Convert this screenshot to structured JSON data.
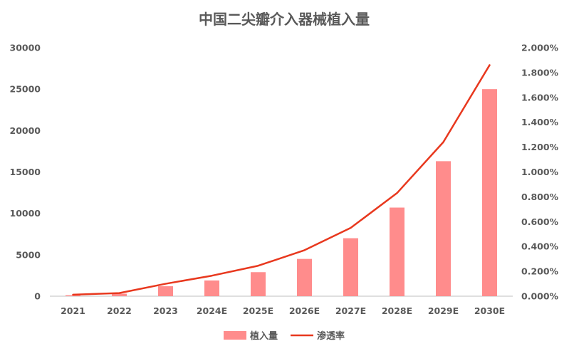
{
  "chart_data": {
    "type": "bar+line",
    "title": "中国二尖瓣介入器械植入量",
    "categories": [
      "2021",
      "2022",
      "2023",
      "2024E",
      "2025E",
      "2026E",
      "2027E",
      "2028E",
      "2029E",
      "2030E"
    ],
    "series": [
      {
        "name": "植入量",
        "type": "bar",
        "axis": "left",
        "color": "#FF8C8C",
        "values": [
          120,
          300,
          1200,
          1900,
          2900,
          4500,
          7000,
          10700,
          16300,
          25000
        ]
      },
      {
        "name": "渗透率",
        "type": "line",
        "axis": "right",
        "color": "#E8381E",
        "values": [
          0.012,
          0.025,
          0.1,
          0.165,
          0.245,
          0.37,
          0.55,
          0.83,
          1.24,
          1.86
        ]
      }
    ],
    "y_left": {
      "range": [
        0,
        30000
      ],
      "ticks": [
        "0",
        "5000",
        "10000",
        "15000",
        "20000",
        "25000",
        "30000"
      ]
    },
    "y_right": {
      "range": [
        0,
        2.0
      ],
      "ticks": [
        "0.000%",
        "0.200%",
        "0.400%",
        "0.600%",
        "0.800%",
        "1.000%",
        "1.200%",
        "1.400%",
        "1.600%",
        "1.800%",
        "2.000%"
      ]
    },
    "grid": false,
    "legend": "bottom"
  }
}
